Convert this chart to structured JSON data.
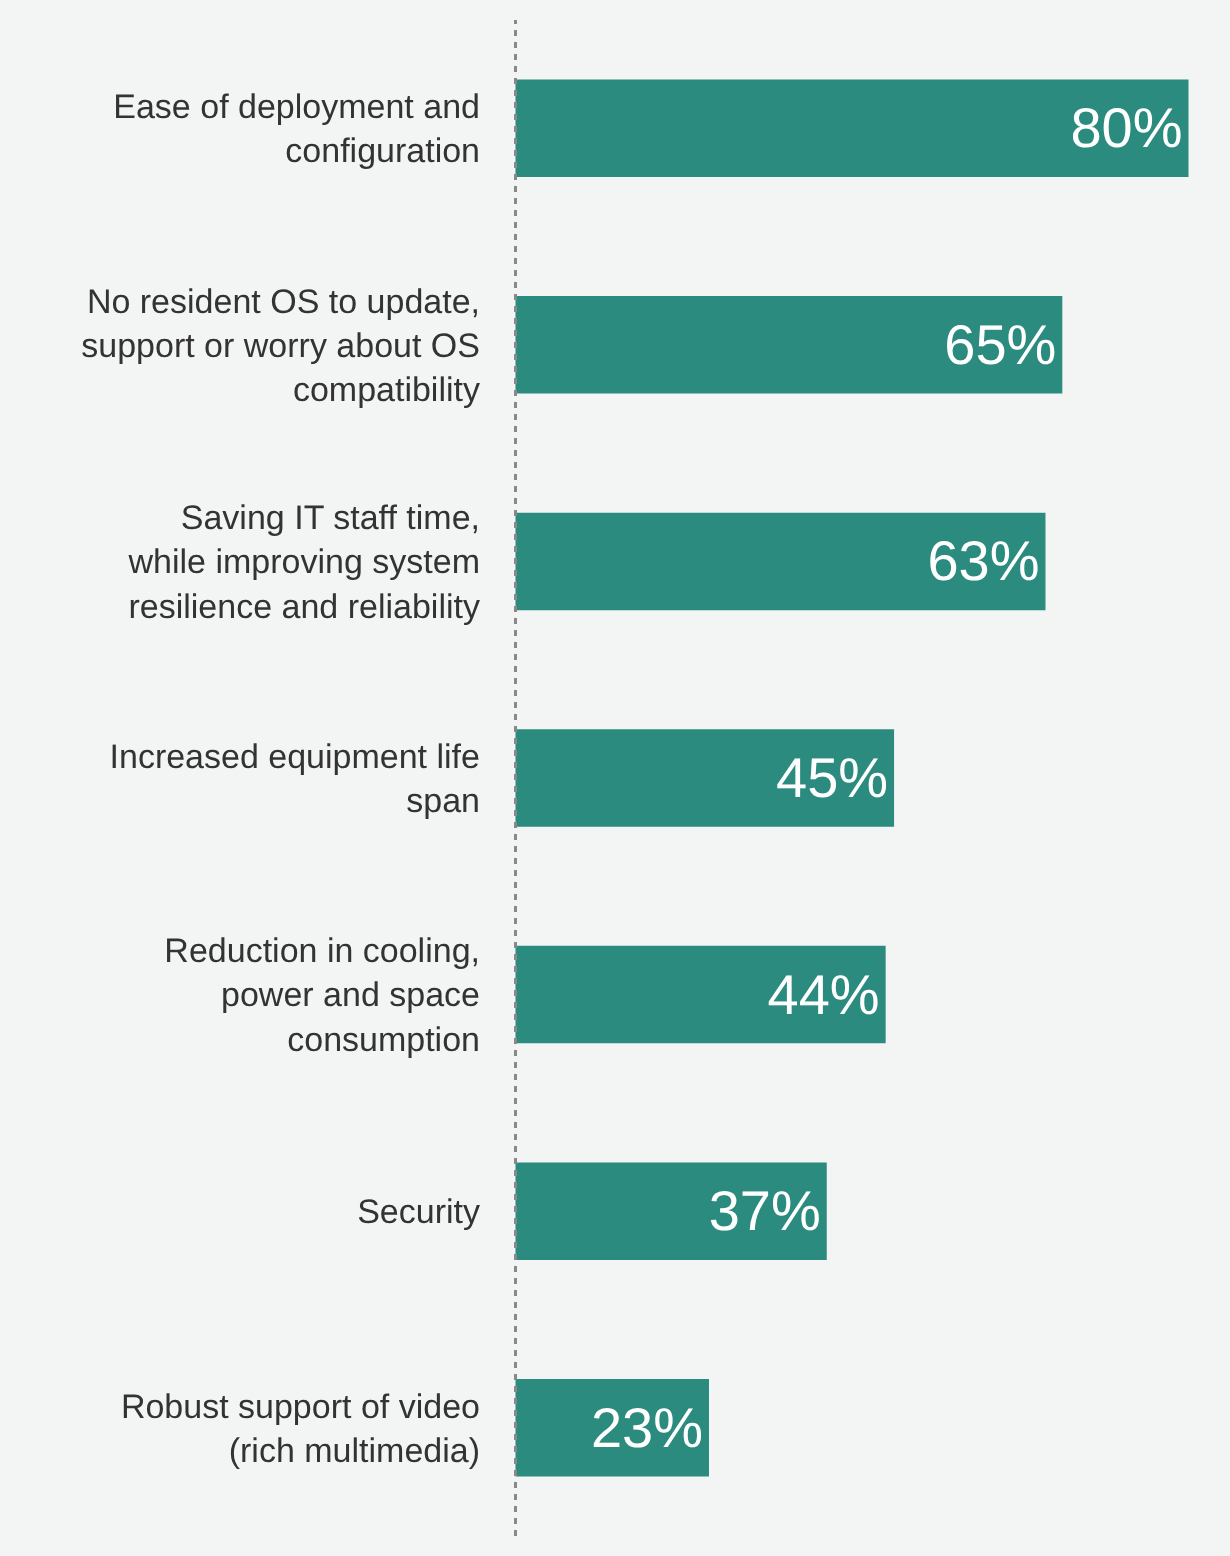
{
  "chart_data": {
    "type": "bar",
    "orientation": "horizontal",
    "categories": [
      "Ease of deployment and configuration",
      "No resident OS to update, support or worry about OS compatibility",
      "Saving IT staff time, while improving system resilience and reliability",
      "Increased equipment life span",
      "Reduction in cooling, power and space consumption",
      "Security",
      "Robust support of video (rich multimedia)"
    ],
    "values": [
      80,
      65,
      63,
      45,
      44,
      37,
      23
    ],
    "value_labels": [
      "80%",
      "65%",
      "63%",
      "45%",
      "44%",
      "37%",
      "23%"
    ],
    "color": "#2b8b7f",
    "tick_labels": "y"
  }
}
